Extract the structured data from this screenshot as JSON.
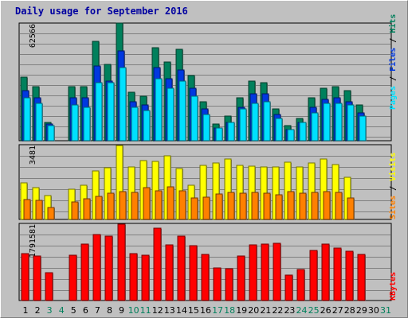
{
  "title": "Daily usage for September 2016",
  "colors": {
    "background": "#c0c0c0",
    "hits": "#00805c",
    "files": "#0038e0",
    "pages": "#00e0ff",
    "visits": "#ffff00",
    "sites": "#ff8000",
    "kbytes": "#ff0000",
    "weekday_label": "#000000",
    "weekend_label": "#00805c"
  },
  "chart_data": [
    {
      "type": "bar",
      "name": "hits-files-pages",
      "categories": [
        "1",
        "2",
        "3",
        "4",
        "5",
        "6",
        "7",
        "8",
        "9",
        "10",
        "11",
        "12",
        "13",
        "14",
        "15",
        "16",
        "17",
        "18",
        "19",
        "20",
        "21",
        "22",
        "23",
        "24",
        "25",
        "26",
        "27",
        "28",
        "29",
        "30",
        "31"
      ],
      "weekend_days": [
        "3",
        "4",
        "10",
        "11",
        "17",
        "18",
        "24",
        "25",
        "31"
      ],
      "y_tick_label": "62566",
      "ylim": [
        0,
        62566
      ],
      "grid": true,
      "series": [
        {
          "name": "Hits",
          "values": [
            34000,
            29000,
            10000,
            0,
            29000,
            29000,
            53000,
            41000,
            63000,
            26000,
            24000,
            50000,
            42000,
            49000,
            35000,
            21000,
            9000,
            13000,
            23000,
            32000,
            31000,
            17000,
            8000,
            12000,
            23000,
            28000,
            29000,
            27000,
            19000,
            0,
            0
          ]
        },
        {
          "name": "Files",
          "values": [
            27000,
            23000,
            9000,
            0,
            23000,
            23000,
            40000,
            32000,
            48000,
            21000,
            19000,
            39000,
            33000,
            38000,
            28000,
            17000,
            7000,
            10000,
            18000,
            25000,
            25000,
            14000,
            6000,
            10000,
            18000,
            22000,
            23000,
            21000,
            15000,
            0,
            0
          ]
        },
        {
          "name": "Pages",
          "values": [
            23000,
            20000,
            8000,
            0,
            19000,
            18000,
            31000,
            31000,
            39000,
            18000,
            16000,
            33000,
            28000,
            32000,
            24000,
            14000,
            7000,
            10000,
            17000,
            20000,
            21000,
            12000,
            6000,
            10000,
            15000,
            20000,
            20000,
            19000,
            13000,
            0,
            0
          ]
        }
      ]
    },
    {
      "type": "bar",
      "name": "visits-sites",
      "categories": [
        "1",
        "2",
        "3",
        "4",
        "5",
        "6",
        "7",
        "8",
        "9",
        "10",
        "11",
        "12",
        "13",
        "14",
        "15",
        "16",
        "17",
        "18",
        "19",
        "20",
        "21",
        "22",
        "23",
        "24",
        "25",
        "26",
        "27",
        "28",
        "29",
        "30",
        "31"
      ],
      "y_tick_label": "3481",
      "ylim": [
        0,
        3481
      ],
      "grid": true,
      "series": [
        {
          "name": "Visits",
          "values": [
            1720,
            1500,
            1120,
            0,
            1420,
            1620,
            2280,
            2420,
            3481,
            2480,
            2780,
            2740,
            3000,
            2400,
            1620,
            2540,
            2640,
            2840,
            2540,
            2520,
            2480,
            2460,
            2680,
            2480,
            2640,
            2840,
            2600,
            2000,
            0,
            0,
            0
          ]
        },
        {
          "name": "Sites",
          "values": [
            920,
            880,
            560,
            0,
            840,
            980,
            1080,
            1220,
            1300,
            1260,
            1480,
            1360,
            1520,
            1360,
            1000,
            1040,
            1180,
            1280,
            1240,
            1260,
            1240,
            1160,
            1300,
            1240,
            1280,
            1320,
            1260,
            1020,
            0,
            0,
            0
          ]
        }
      ]
    },
    {
      "type": "bar",
      "name": "kbytes",
      "categories": [
        "1",
        "2",
        "3",
        "4",
        "5",
        "6",
        "7",
        "8",
        "9",
        "10",
        "11",
        "12",
        "13",
        "14",
        "15",
        "16",
        "17",
        "18",
        "19",
        "20",
        "21",
        "22",
        "23",
        "24",
        "25",
        "26",
        "27",
        "28",
        "29",
        "30",
        "31"
      ],
      "y_tick_label": "1791581",
      "ylim": [
        0,
        1791581
      ],
      "grid": true,
      "series": [
        {
          "name": "KBytes",
          "values": [
            1100000,
            1040000,
            660000,
            0,
            1060000,
            1320000,
            1540000,
            1520000,
            1791581,
            1100000,
            1060000,
            1700000,
            1300000,
            1510000,
            1280000,
            1080000,
            760000,
            740000,
            1040000,
            1310000,
            1320000,
            1340000,
            590000,
            730000,
            1180000,
            1330000,
            1240000,
            1150000,
            1080000,
            0,
            0
          ]
        }
      ]
    }
  ],
  "right_labels": {
    "hits": "Hits",
    "files": "Files",
    "pages": "Pages",
    "visits": "Visits",
    "sites": "Sites",
    "kbytes": "KBytes",
    "separator": " / "
  }
}
